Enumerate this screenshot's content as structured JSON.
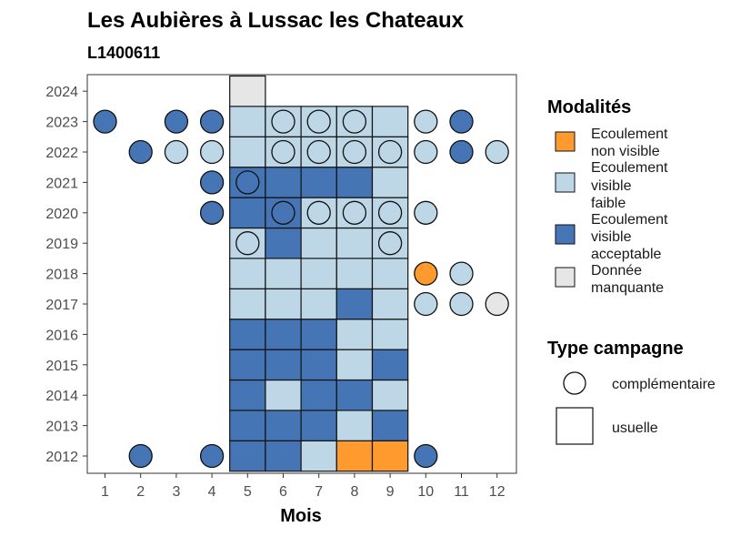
{
  "chart_data": {
    "type": "heatmap",
    "title": "Les Aubières à Lussac les Chateaux",
    "subtitle": "L1400611",
    "xlabel": "Mois",
    "ylabel": "",
    "x_categories": [
      "1",
      "2",
      "3",
      "4",
      "5",
      "6",
      "7",
      "8",
      "9",
      "10",
      "11",
      "12"
    ],
    "y_categories": [
      "2012",
      "2013",
      "2014",
      "2015",
      "2016",
      "2017",
      "2018",
      "2019",
      "2020",
      "2021",
      "2022",
      "2023",
      "2024"
    ],
    "grid": false,
    "legend_placement": "right",
    "modality_legend": {
      "title": "Modalités",
      "items": [
        {
          "key": "nv",
          "label": [
            "Ecoulement",
            "non visible"
          ],
          "color": "#FF9A2E"
        },
        {
          "key": "vf",
          "label": [
            "Ecoulement",
            "visible",
            "faible"
          ],
          "color": "#BDD7E7"
        },
        {
          "key": "va",
          "label": [
            "Ecoulement",
            "visible",
            "acceptable"
          ],
          "color": "#4575B4"
        },
        {
          "key": "dm",
          "label": [
            "Donnée",
            "manquante"
          ],
          "color": "#E6E6E6"
        }
      ]
    },
    "campaign_legend": {
      "title": "Type campagne",
      "items": [
        {
          "key": "c",
          "label": "complémentaire",
          "shape": "circle"
        },
        {
          "key": "u",
          "label": "usuelle",
          "shape": "square"
        }
      ]
    },
    "observations": [
      {
        "year": "2012",
        "month": 5,
        "type": "u",
        "value": "va"
      },
      {
        "year": "2012",
        "month": 6,
        "type": "u",
        "value": "va"
      },
      {
        "year": "2012",
        "month": 7,
        "type": "u",
        "value": "vf"
      },
      {
        "year": "2012",
        "month": 8,
        "type": "u",
        "value": "nv"
      },
      {
        "year": "2012",
        "month": 9,
        "type": "u",
        "value": "nv"
      },
      {
        "year": "2012",
        "month": 2,
        "type": "c",
        "value": "va"
      },
      {
        "year": "2012",
        "month": 4,
        "type": "c",
        "value": "va"
      },
      {
        "year": "2012",
        "month": 10,
        "type": "c",
        "value": "va"
      },
      {
        "year": "2013",
        "month": 5,
        "type": "u",
        "value": "va"
      },
      {
        "year": "2013",
        "month": 6,
        "type": "u",
        "value": "va"
      },
      {
        "year": "2013",
        "month": 7,
        "type": "u",
        "value": "va"
      },
      {
        "year": "2013",
        "month": 8,
        "type": "u",
        "value": "vf"
      },
      {
        "year": "2013",
        "month": 9,
        "type": "u",
        "value": "va"
      },
      {
        "year": "2014",
        "month": 5,
        "type": "u",
        "value": "va"
      },
      {
        "year": "2014",
        "month": 6,
        "type": "u",
        "value": "vf"
      },
      {
        "year": "2014",
        "month": 7,
        "type": "u",
        "value": "va"
      },
      {
        "year": "2014",
        "month": 8,
        "type": "u",
        "value": "va"
      },
      {
        "year": "2014",
        "month": 9,
        "type": "u",
        "value": "vf"
      },
      {
        "year": "2015",
        "month": 5,
        "type": "u",
        "value": "va"
      },
      {
        "year": "2015",
        "month": 6,
        "type": "u",
        "value": "va"
      },
      {
        "year": "2015",
        "month": 7,
        "type": "u",
        "value": "va"
      },
      {
        "year": "2015",
        "month": 8,
        "type": "u",
        "value": "vf"
      },
      {
        "year": "2015",
        "month": 9,
        "type": "u",
        "value": "va"
      },
      {
        "year": "2016",
        "month": 5,
        "type": "u",
        "value": "va"
      },
      {
        "year": "2016",
        "month": 6,
        "type": "u",
        "value": "va"
      },
      {
        "year": "2016",
        "month": 7,
        "type": "u",
        "value": "va"
      },
      {
        "year": "2016",
        "month": 8,
        "type": "u",
        "value": "vf"
      },
      {
        "year": "2016",
        "month": 9,
        "type": "u",
        "value": "vf"
      },
      {
        "year": "2017",
        "month": 5,
        "type": "u",
        "value": "vf"
      },
      {
        "year": "2017",
        "month": 6,
        "type": "u",
        "value": "vf"
      },
      {
        "year": "2017",
        "month": 7,
        "type": "u",
        "value": "vf"
      },
      {
        "year": "2017",
        "month": 8,
        "type": "u",
        "value": "va"
      },
      {
        "year": "2017",
        "month": 9,
        "type": "u",
        "value": "vf"
      },
      {
        "year": "2017",
        "month": 10,
        "type": "c",
        "value": "vf"
      },
      {
        "year": "2017",
        "month": 11,
        "type": "c",
        "value": "vf"
      },
      {
        "year": "2017",
        "month": 12,
        "type": "c",
        "value": "dm"
      },
      {
        "year": "2018",
        "month": 5,
        "type": "u",
        "value": "vf"
      },
      {
        "year": "2018",
        "month": 6,
        "type": "u",
        "value": "vf"
      },
      {
        "year": "2018",
        "month": 7,
        "type": "u",
        "value": "vf"
      },
      {
        "year": "2018",
        "month": 8,
        "type": "u",
        "value": "vf"
      },
      {
        "year": "2018",
        "month": 9,
        "type": "u",
        "value": "vf"
      },
      {
        "year": "2018",
        "month": 10,
        "type": "c",
        "value": "nv"
      },
      {
        "year": "2018",
        "month": 11,
        "type": "c",
        "value": "vf"
      },
      {
        "year": "2019",
        "month": 5,
        "type": "u",
        "value": "vf"
      },
      {
        "year": "2019",
        "month": 6,
        "type": "u",
        "value": "va"
      },
      {
        "year": "2019",
        "month": 7,
        "type": "u",
        "value": "vf"
      },
      {
        "year": "2019",
        "month": 8,
        "type": "u",
        "value": "vf"
      },
      {
        "year": "2019",
        "month": 9,
        "type": "u",
        "value": "vf"
      },
      {
        "year": "2019",
        "month": 5,
        "type": "c",
        "value": "vf"
      },
      {
        "year": "2019",
        "month": 9,
        "type": "c",
        "value": "vf"
      },
      {
        "year": "2020",
        "month": 5,
        "type": "u",
        "value": "va"
      },
      {
        "year": "2020",
        "month": 6,
        "type": "u",
        "value": "va"
      },
      {
        "year": "2020",
        "month": 7,
        "type": "u",
        "value": "vf"
      },
      {
        "year": "2020",
        "month": 8,
        "type": "u",
        "value": "vf"
      },
      {
        "year": "2020",
        "month": 9,
        "type": "u",
        "value": "vf"
      },
      {
        "year": "2020",
        "month": 4,
        "type": "c",
        "value": "va"
      },
      {
        "year": "2020",
        "month": 6,
        "type": "c",
        "value": "va"
      },
      {
        "year": "2020",
        "month": 7,
        "type": "c",
        "value": "vf"
      },
      {
        "year": "2020",
        "month": 8,
        "type": "c",
        "value": "vf"
      },
      {
        "year": "2020",
        "month": 9,
        "type": "c",
        "value": "vf"
      },
      {
        "year": "2020",
        "month": 10,
        "type": "c",
        "value": "vf"
      },
      {
        "year": "2021",
        "month": 5,
        "type": "u",
        "value": "va"
      },
      {
        "year": "2021",
        "month": 6,
        "type": "u",
        "value": "va"
      },
      {
        "year": "2021",
        "month": 7,
        "type": "u",
        "value": "va"
      },
      {
        "year": "2021",
        "month": 8,
        "type": "u",
        "value": "va"
      },
      {
        "year": "2021",
        "month": 9,
        "type": "u",
        "value": "vf"
      },
      {
        "year": "2021",
        "month": 4,
        "type": "c",
        "value": "va"
      },
      {
        "year": "2021",
        "month": 5,
        "type": "c",
        "value": "va"
      },
      {
        "year": "2022",
        "month": 5,
        "type": "u",
        "value": "vf"
      },
      {
        "year": "2022",
        "month": 6,
        "type": "u",
        "value": "vf"
      },
      {
        "year": "2022",
        "month": 7,
        "type": "u",
        "value": "vf"
      },
      {
        "year": "2022",
        "month": 8,
        "type": "u",
        "value": "vf"
      },
      {
        "year": "2022",
        "month": 9,
        "type": "u",
        "value": "vf"
      },
      {
        "year": "2022",
        "month": 2,
        "type": "c",
        "value": "va"
      },
      {
        "year": "2022",
        "month": 3,
        "type": "c",
        "value": "vf"
      },
      {
        "year": "2022",
        "month": 4,
        "type": "c",
        "value": "vf"
      },
      {
        "year": "2022",
        "month": 6,
        "type": "c",
        "value": "vf"
      },
      {
        "year": "2022",
        "month": 7,
        "type": "c",
        "value": "vf"
      },
      {
        "year": "2022",
        "month": 8,
        "type": "c",
        "value": "vf"
      },
      {
        "year": "2022",
        "month": 9,
        "type": "c",
        "value": "vf"
      },
      {
        "year": "2022",
        "month": 10,
        "type": "c",
        "value": "vf"
      },
      {
        "year": "2022",
        "month": 11,
        "type": "c",
        "value": "va"
      },
      {
        "year": "2022",
        "month": 12,
        "type": "c",
        "value": "vf"
      },
      {
        "year": "2023",
        "month": 5,
        "type": "u",
        "value": "vf"
      },
      {
        "year": "2023",
        "month": 6,
        "type": "u",
        "value": "vf"
      },
      {
        "year": "2023",
        "month": 7,
        "type": "u",
        "value": "vf"
      },
      {
        "year": "2023",
        "month": 8,
        "type": "u",
        "value": "vf"
      },
      {
        "year": "2023",
        "month": 9,
        "type": "u",
        "value": "vf"
      },
      {
        "year": "2023",
        "month": 1,
        "type": "c",
        "value": "va"
      },
      {
        "year": "2023",
        "month": 3,
        "type": "c",
        "value": "va"
      },
      {
        "year": "2023",
        "month": 4,
        "type": "c",
        "value": "va"
      },
      {
        "year": "2023",
        "month": 6,
        "type": "c",
        "value": "vf"
      },
      {
        "year": "2023",
        "month": 7,
        "type": "c",
        "value": "vf"
      },
      {
        "year": "2023",
        "month": 8,
        "type": "c",
        "value": "vf"
      },
      {
        "year": "2023",
        "month": 10,
        "type": "c",
        "value": "vf"
      },
      {
        "year": "2023",
        "month": 11,
        "type": "c",
        "value": "va"
      },
      {
        "year": "2024",
        "month": 5,
        "type": "u",
        "value": "dm"
      }
    ]
  }
}
